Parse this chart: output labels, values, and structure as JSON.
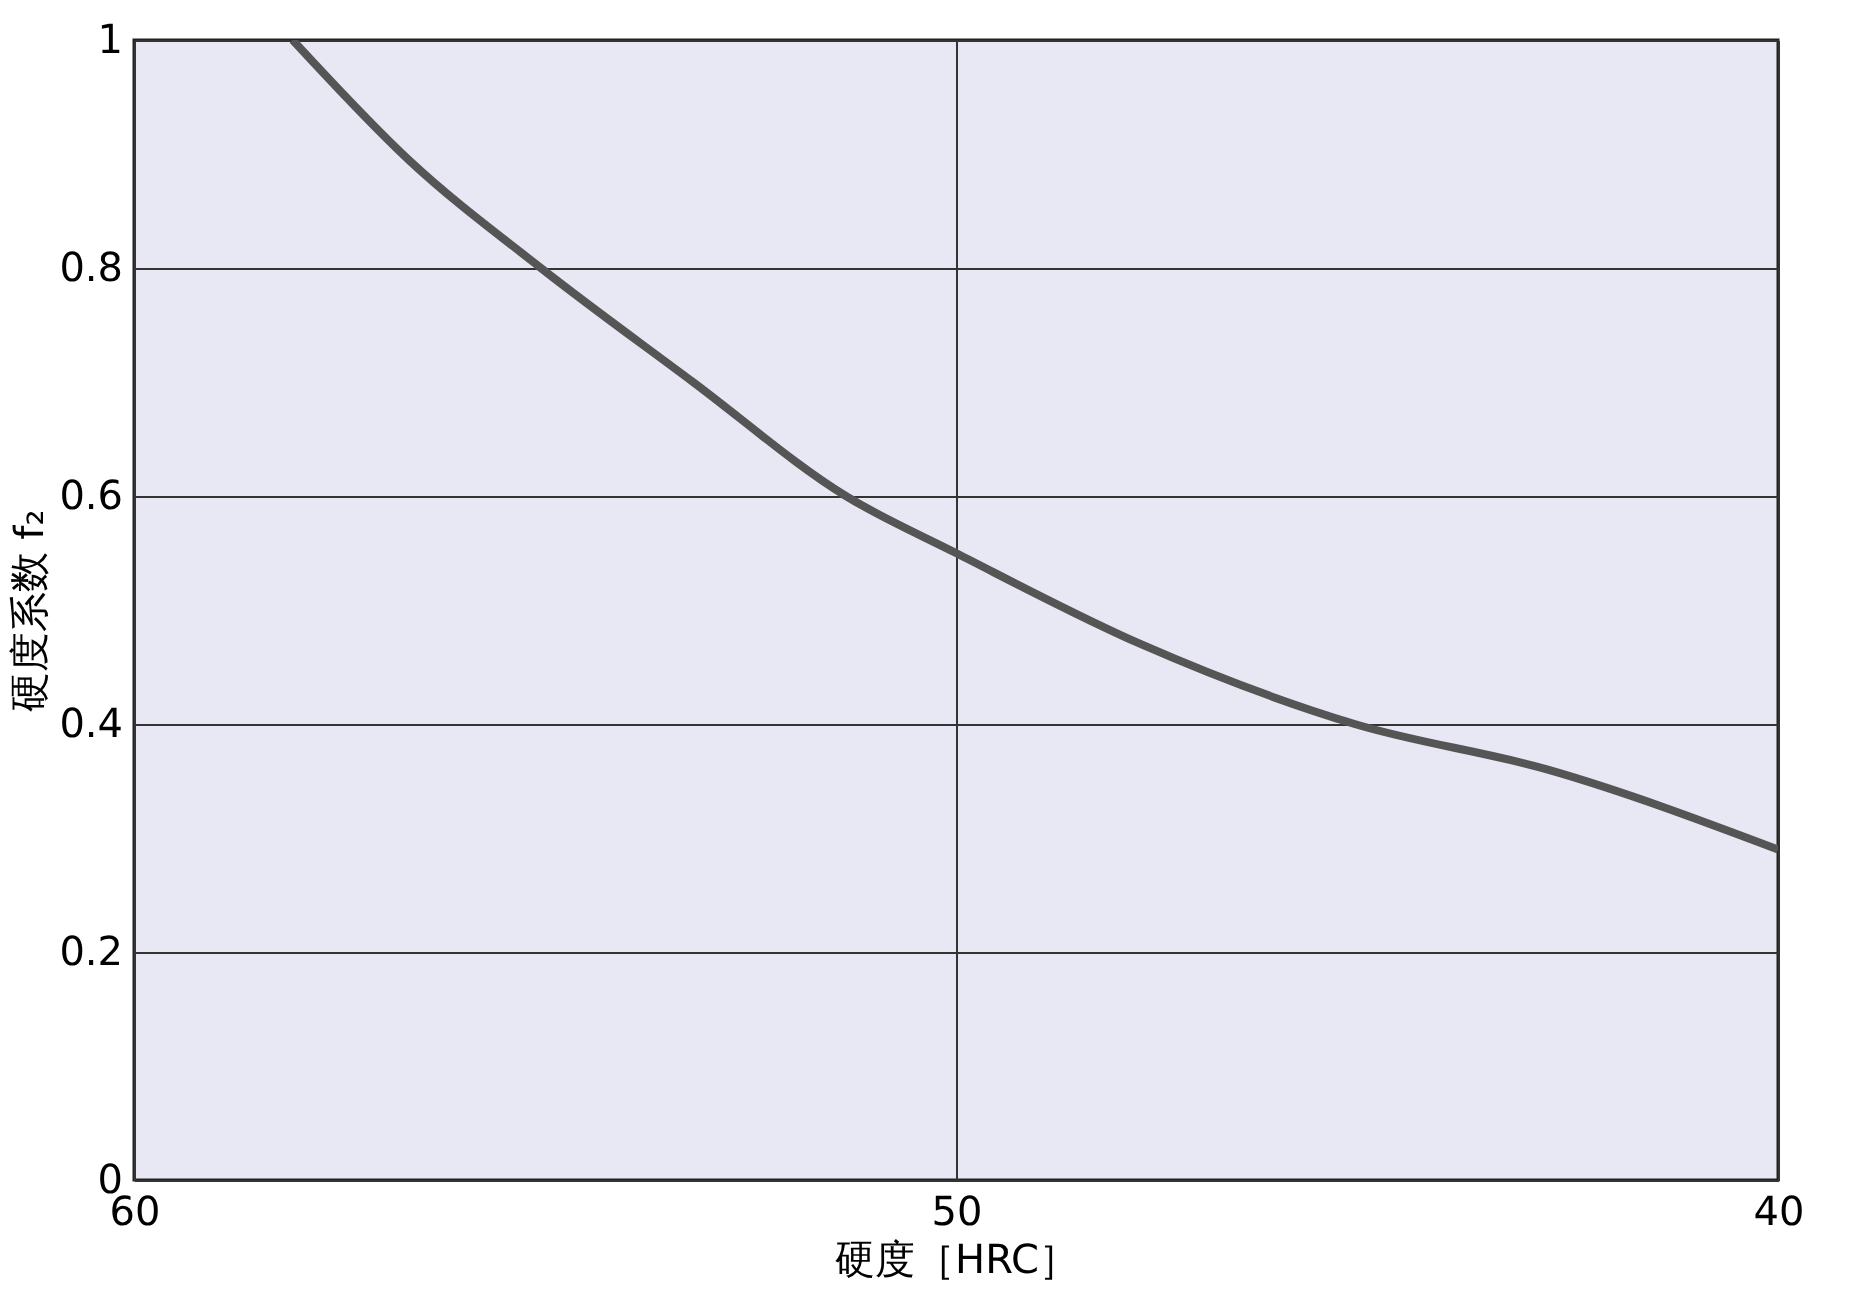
{
  "chart_data": {
    "type": "line",
    "xlabel": "硬度［HRC］",
    "ylabel": "硬度系数 f₂",
    "x": [
      58.07,
      56.66,
      55.05,
      53.2,
      51.34,
      50,
      47.75,
      45.15,
      42.8,
      40
    ],
    "series": [
      {
        "color": "#555555",
        "values": [
          1,
          0.895,
          0.8,
          0.7,
          0.6,
          0.55,
          0.47,
          0.4,
          0.36,
          0.29
        ]
      }
    ],
    "xlim": [
      60,
      40
    ],
    "xticks": [
      60,
      50,
      40
    ],
    "ylim": [
      0,
      1
    ],
    "yticks": [
      0,
      0.2,
      0.4,
      0.6,
      0.8,
      1
    ],
    "grid": true,
    "marker": "none",
    "line_style": "solid"
  }
}
